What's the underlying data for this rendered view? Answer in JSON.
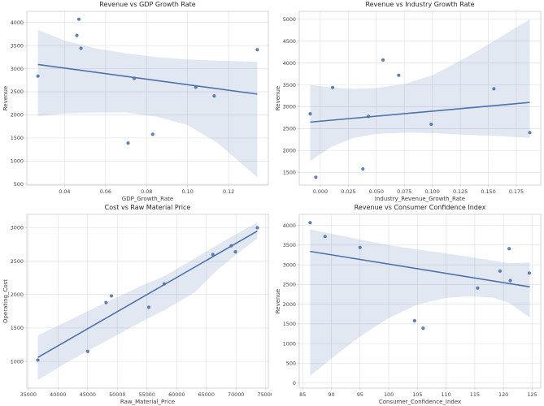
{
  "theme": {
    "accent": "#4c72b0",
    "point_color": "#4c72b0",
    "band_color": "#4c72b0",
    "band_opacity": 0.16,
    "grid_color": "#e0e3e8",
    "spine_color": "#cccccc",
    "tick_label_color": "#3d3d3d",
    "title_color": "#262626",
    "background": "#ffffff"
  },
  "chart_data": [
    {
      "type": "scatter",
      "title": "Revenue vs GDP Growth Rate",
      "xlabel": "GDP_Growth_Rate",
      "ylabel": "Revenue",
      "xlim": [
        0.0216,
        0.1394
      ],
      "ylim": [
        480,
        4240
      ],
      "xticks": [
        0.04,
        0.06,
        0.08,
        0.1,
        0.12
      ],
      "xtick_labels": [
        "0.04",
        "0.06",
        "0.08",
        "0.10",
        "0.12"
      ],
      "yticks": [
        500,
        1000,
        1500,
        2000,
        2500,
        3000,
        3500,
        4000
      ],
      "ytick_labels": [
        "500",
        "1000",
        "1500",
        "2000",
        "2500",
        "3000",
        "3500",
        "4000"
      ],
      "grid": true,
      "legend": "none",
      "points": {
        "x": [
          0.027,
          0.046,
          0.047,
          0.048,
          0.071,
          0.074,
          0.083,
          0.104,
          0.113,
          0.134
        ],
        "y": [
          2840,
          3720,
          4070,
          3440,
          1390,
          2790,
          1580,
          2600,
          2410,
          3410
        ]
      },
      "regression_line": {
        "x": [
          0.027,
          0.134
        ],
        "y": [
          3090,
          2450
        ]
      },
      "confidence_band": {
        "x": [
          0.027,
          0.04,
          0.055,
          0.07,
          0.085,
          0.1,
          0.115,
          0.134
        ],
        "upper": [
          3840,
          3610,
          3440,
          3330,
          3250,
          3200,
          3170,
          3150
        ],
        "lower": [
          1970,
          2030,
          2050,
          2050,
          1960,
          1780,
          1380,
          650
        ]
      }
    },
    {
      "type": "scatter",
      "title": "Revenue vs Industry Growth Rate",
      "xlabel": "Industry_Revenue_Growth_Rate",
      "ylabel": "Revenue",
      "xlim": [
        -0.0188,
        0.1968
      ],
      "ylim": [
        1210,
        5180
      ],
      "xticks": [
        0.0,
        0.025,
        0.05,
        0.075,
        0.1,
        0.125,
        0.15,
        0.175
      ],
      "xtick_labels": [
        "0.000",
        "0.025",
        "0.050",
        "0.075",
        "0.100",
        "0.125",
        "0.150",
        "0.175"
      ],
      "yticks": [
        1500,
        2000,
        2500,
        3000,
        3500,
        4000,
        4500,
        5000
      ],
      "ytick_labels": [
        "1500",
        "2000",
        "2500",
        "3000",
        "3500",
        "4000",
        "4500",
        "5000"
      ],
      "grid": true,
      "legend": "none",
      "points": {
        "x": [
          -0.009,
          -0.004,
          0.011,
          0.038,
          0.043,
          0.056,
          0.07,
          0.099,
          0.155,
          0.187
        ],
        "y": [
          2840,
          1390,
          3440,
          1580,
          2780,
          4070,
          3720,
          2600,
          3410,
          2410
        ]
      },
      "regression_line": {
        "x": [
          -0.009,
          0.187
        ],
        "y": [
          2650,
          3100
        ]
      },
      "confidence_band": {
        "x": [
          -0.009,
          0.01,
          0.03,
          0.05,
          0.075,
          0.1,
          0.13,
          0.16,
          0.187
        ],
        "upper": [
          3500,
          3440,
          3410,
          3430,
          3520,
          3720,
          4120,
          4580,
          5000
        ],
        "lower": [
          1760,
          2090,
          2290,
          2380,
          2410,
          2400,
          2360,
          2330,
          2290
        ]
      }
    },
    {
      "type": "scatter",
      "title": "Cost vs Raw Material Price",
      "xlabel": "Raw_Material_Price",
      "ylabel": "Operating_Cost",
      "xlim": [
        34750,
        75450
      ],
      "ylim": [
        600,
        3200
      ],
      "xticks": [
        35000,
        40000,
        45000,
        50000,
        55000,
        60000,
        65000,
        70000,
        75000
      ],
      "xtick_labels": [
        "35000",
        "40000",
        "45000",
        "50000",
        "55000",
        "60000",
        "65000",
        "70000",
        "75000"
      ],
      "yticks": [
        1000,
        1500,
        2000,
        2500,
        3000
      ],
      "ytick_labels": [
        "1000",
        "1500",
        "2000",
        "2500",
        "3000"
      ],
      "grid": true,
      "legend": "none",
      "points": {
        "x": [
          36600,
          45000,
          48100,
          49000,
          55300,
          57900,
          66100,
          69200,
          69900,
          73600
        ],
        "y": [
          1020,
          1150,
          1880,
          1980,
          1810,
          2160,
          2600,
          2730,
          2640,
          3000
        ]
      },
      "regression_line": {
        "x": [
          36600,
          73600
        ],
        "y": [
          1060,
          2950
        ]
      },
      "confidence_band": {
        "x": [
          36600,
          42000,
          48000,
          54000,
          58000,
          63000,
          67000,
          70500,
          73600
        ],
        "upper": [
          1390,
          1620,
          1880,
          2130,
          2280,
          2540,
          2750,
          2930,
          3080
        ],
        "lower": [
          720,
          1010,
          1300,
          1590,
          1770,
          2030,
          2380,
          2630,
          2840
        ]
      }
    },
    {
      "type": "scatter",
      "title": "Revenue vs Consumer Confidence Index",
      "xlabel": "Consumer_Confidence_Index",
      "ylabel": "Revenue",
      "xlim": [
        84.4,
        126.5
      ],
      "ylim": [
        -130,
        4280
      ],
      "xticks": [
        85,
        90,
        95,
        100,
        105,
        110,
        115,
        120,
        125
      ],
      "xtick_labels": [
        "85",
        "90",
        "95",
        "100",
        "105",
        "110",
        "115",
        "120",
        "125"
      ],
      "yticks": [
        0,
        500,
        1000,
        1500,
        2000,
        2500,
        3000,
        3500,
        4000
      ],
      "ytick_labels": [
        "0",
        "500",
        "1000",
        "1500",
        "2000",
        "2500",
        "3000",
        "3500",
        "4000"
      ],
      "grid": true,
      "legend": "none",
      "points": {
        "x": [
          86.3,
          88.9,
          95.0,
          104.5,
          106.0,
          115.5,
          119.4,
          121.0,
          121.2,
          124.5
        ],
        "y": [
          4070,
          3720,
          3440,
          1580,
          1390,
          2410,
          2840,
          3410,
          2600,
          2790
        ]
      },
      "regression_line": {
        "x": [
          86.3,
          124.6
        ],
        "y": [
          3340,
          2440
        ]
      },
      "confidence_band": {
        "x": [
          86.3,
          90,
          95,
          100,
          105,
          110,
          114,
          118,
          121,
          124.6
        ],
        "upper": [
          3900,
          3790,
          3640,
          3500,
          3390,
          3290,
          3200,
          3110,
          3040,
          3060
        ],
        "lower": [
          180,
          620,
          1180,
          1650,
          1990,
          2160,
          2200,
          2170,
          2030,
          1660
        ]
      }
    }
  ]
}
